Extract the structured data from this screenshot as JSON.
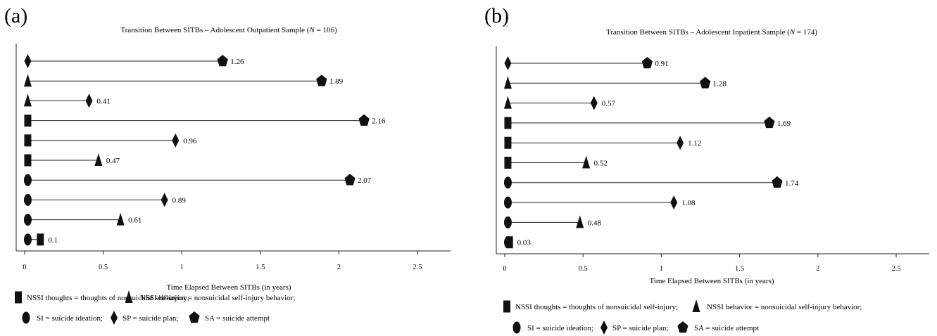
{
  "legend": {
    "nssi_thoughts": "NSSI thoughts = thoughts of nonsuicidal self-injury;",
    "nssi_behavior": "NSSI behavior = nonsuicidal self-injury behavior;",
    "si": "SI = suicide ideation;",
    "sp": "SP = suicide plan;",
    "sa": "SA = suicide attempt"
  },
  "chart_data": [
    {
      "type": "dumbbell",
      "panel_label": "(a)",
      "title_prefix": "Transition Between SITBs – Adolescent Outpatient Sample (",
      "title_n": "N",
      "title_suffix": " = 106)",
      "xlabel": "Time Elapsed Between SITBs (in years)",
      "xlim": [
        0,
        2.7
      ],
      "xticks": [
        0,
        0.5,
        1,
        1.5,
        2,
        2.5
      ],
      "xtick_labels": [
        "0",
        "0.5",
        "1",
        "1.5",
        "2",
        "2.5"
      ],
      "grid": false,
      "rows": [
        {
          "from": "SP",
          "to": "SA",
          "start": 0.02,
          "value": 1.26,
          "label": "1.26"
        },
        {
          "from": "NSSI behavior",
          "to": "SA",
          "start": 0.02,
          "value": 1.89,
          "label": "1.89"
        },
        {
          "from": "NSSI behavior",
          "to": "SP",
          "start": 0.02,
          "value": 0.41,
          "label": "0.41"
        },
        {
          "from": "NSSI thoughts",
          "to": "SA",
          "start": 0.02,
          "value": 2.16,
          "label": "2.16"
        },
        {
          "from": "NSSI thoughts",
          "to": "SP",
          "start": 0.02,
          "value": 0.96,
          "label": "0.96"
        },
        {
          "from": "NSSI thoughts",
          "to": "NSSI behavior",
          "start": 0.02,
          "value": 0.47,
          "label": "0.47"
        },
        {
          "from": "SI",
          "to": "SA",
          "start": 0.02,
          "value": 2.07,
          "label": "2.07"
        },
        {
          "from": "SI",
          "to": "SP",
          "start": 0.02,
          "value": 0.89,
          "label": "0.89"
        },
        {
          "from": "SI",
          "to": "NSSI behavior",
          "start": 0.02,
          "value": 0.61,
          "label": "0.61"
        },
        {
          "from": "SI",
          "to": "NSSI thoughts",
          "start": 0.02,
          "value": 0.1,
          "label": "0.1"
        }
      ]
    },
    {
      "type": "dumbbell",
      "panel_label": "(b)",
      "title_prefix": "Transition Between SITBs – Adolescent Inpatient Sample (",
      "title_n": "N",
      "title_suffix": " = 174)",
      "xlabel": "Time Elapsed Between SITBs (in years)",
      "xlim": [
        0,
        2.7
      ],
      "xticks": [
        0,
        0.5,
        1,
        1.5,
        2,
        2.5
      ],
      "xtick_labels": [
        "0",
        "0.5",
        "1",
        "1.5",
        "2",
        "2.5"
      ],
      "grid": false,
      "rows": [
        {
          "from": "SP",
          "to": "SA",
          "start": 0.02,
          "value": 0.91,
          "label": "0.91"
        },
        {
          "from": "NSSI behavior",
          "to": "SA",
          "start": 0.02,
          "value": 1.28,
          "label": "1.28"
        },
        {
          "from": "NSSI behavior",
          "to": "SP",
          "start": 0.02,
          "value": 0.57,
          "label": "0.57"
        },
        {
          "from": "NSSI thoughts",
          "to": "SA",
          "start": 0.02,
          "value": 1.69,
          "label": "1.69"
        },
        {
          "from": "NSSI thoughts",
          "to": "SP",
          "start": 0.02,
          "value": 1.12,
          "label": "1.12"
        },
        {
          "from": "NSSI thoughts",
          "to": "NSSI behavior",
          "start": 0.02,
          "value": 0.52,
          "label": "0.52"
        },
        {
          "from": "SI",
          "to": "SA",
          "start": 0.02,
          "value": 1.74,
          "label": "1.74"
        },
        {
          "from": "SI",
          "to": "SP",
          "start": 0.02,
          "value": 1.08,
          "label": "1.08"
        },
        {
          "from": "SI",
          "to": "NSSI behavior",
          "start": 0.02,
          "value": 0.48,
          "label": "0.48"
        },
        {
          "from": "SI",
          "to": "NSSI thoughts",
          "start": 0.02,
          "value": 0.03,
          "label": "0.03"
        }
      ]
    }
  ]
}
